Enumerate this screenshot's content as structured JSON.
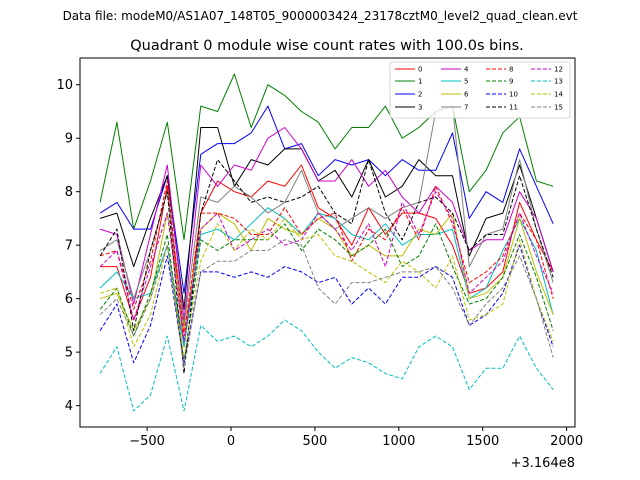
{
  "suptitle": "Data file: modeM0/AS1A07_148T05_9000003424_23178cztM0_level2_quad_clean.evt",
  "chart_data": {
    "type": "line",
    "title": "Quadrant 0 module wise count rates with 100.0s bins.",
    "xlabel": "",
    "ylabel": "",
    "x_offset_label": "+3.164e8",
    "xlim": [
      -900,
      2050
    ],
    "ylim": [
      3.6,
      10.5
    ],
    "xticks": [
      -500,
      0,
      500,
      1000,
      1500,
      2000
    ],
    "xtick_labels": [
      "−500",
      "0",
      "500",
      "1000",
      "1500",
      "2000"
    ],
    "yticks": [
      4,
      5,
      6,
      7,
      8,
      9,
      10
    ],
    "ytick_labels": [
      "4",
      "5",
      "6",
      "7",
      "8",
      "9",
      "10"
    ],
    "grid": false,
    "legend_location": "top-right",
    "x": [
      -780,
      -680,
      -580,
      -480,
      -380,
      -280,
      -180,
      -80,
      20,
      120,
      220,
      320,
      420,
      520,
      620,
      720,
      820,
      920,
      1020,
      1120,
      1220,
      1320,
      1420,
      1520,
      1620,
      1720,
      1820,
      1920
    ],
    "series": [
      {
        "name": "0",
        "color": "#ff0000",
        "dash": "solid",
        "values": [
          6.6,
          6.6,
          5.6,
          6.4,
          8.1,
          5.1,
          7.6,
          8.2,
          8.0,
          7.9,
          8.2,
          8.1,
          8.5,
          7.7,
          7.5,
          7.0,
          7.7,
          7.2,
          7.6,
          7.6,
          7.5,
          7.0,
          6.1,
          6.2,
          6.5,
          7.8,
          7.1,
          6.5
        ]
      },
      {
        "name": "1",
        "color": "#008000",
        "dash": "solid",
        "values": [
          7.8,
          9.3,
          7.3,
          8.2,
          9.3,
          7.1,
          9.6,
          9.5,
          10.2,
          9.2,
          10.0,
          9.8,
          9.5,
          9.3,
          8.8,
          9.2,
          9.2,
          9.6,
          9.0,
          9.2,
          9.5,
          9.6,
          8.0,
          8.4,
          9.1,
          9.4,
          8.2,
          8.1
        ]
      },
      {
        "name": "2",
        "color": "#0000ff",
        "dash": "solid",
        "values": [
          7.6,
          7.8,
          7.3,
          7.3,
          8.3,
          6.1,
          8.7,
          8.9,
          8.9,
          9.1,
          9.6,
          8.8,
          8.9,
          8.3,
          8.6,
          8.5,
          8.6,
          8.3,
          8.6,
          8.4,
          8.4,
          9.1,
          7.5,
          8.0,
          7.8,
          8.8,
          8.1,
          7.4
        ]
      },
      {
        "name": "3",
        "color": "#000000",
        "dash": "solid",
        "values": [
          7.5,
          7.6,
          6.6,
          7.5,
          8.3,
          5.8,
          9.2,
          9.2,
          8.1,
          8.6,
          8.5,
          8.8,
          8.8,
          8.2,
          8.4,
          7.9,
          8.6,
          7.9,
          8.1,
          8.6,
          8.3,
          8.3,
          6.8,
          7.5,
          7.6,
          8.5,
          7.5,
          6.5
        ]
      },
      {
        "name": "4",
        "color": "#cc00cc",
        "dash": "solid",
        "values": [
          7.3,
          7.2,
          5.9,
          7.2,
          8.5,
          5.6,
          8.5,
          8.1,
          8.5,
          8.4,
          9.0,
          9.2,
          8.8,
          8.2,
          8.2,
          8.6,
          8.1,
          8.4,
          7.9,
          7.6,
          8.1,
          7.8,
          6.9,
          7.1,
          7.1,
          8.0,
          7.5,
          6.5
        ]
      },
      {
        "name": "5",
        "color": "#00bfbf",
        "dash": "solid",
        "values": [
          6.2,
          6.5,
          6.0,
          6.1,
          7.0,
          5.1,
          7.2,
          7.3,
          7.1,
          7.4,
          7.7,
          7.5,
          7.2,
          7.6,
          7.5,
          7.2,
          7.1,
          7.4,
          7.0,
          7.2,
          7.2,
          7.3,
          6.0,
          6.2,
          6.9,
          7.5,
          6.9,
          5.7
        ]
      },
      {
        "name": "6",
        "color": "#bfbf00",
        "dash": "solid",
        "values": [
          6.0,
          6.1,
          5.4,
          6.0,
          7.6,
          5.4,
          7.3,
          7.6,
          7.4,
          6.9,
          7.5,
          7.3,
          7.2,
          7.5,
          7.3,
          6.8,
          7.0,
          6.8,
          6.8,
          7.3,
          7.2,
          7.6,
          6.0,
          6.1,
          6.4,
          7.5,
          6.5,
          5.7
        ]
      },
      {
        "name": "7",
        "color": "#808080",
        "dash": "solid",
        "values": [
          6.9,
          7.1,
          6.0,
          6.9,
          8.0,
          5.5,
          7.9,
          7.8,
          8.1,
          7.9,
          7.6,
          7.8,
          8.4,
          7.6,
          7.3,
          7.5,
          7.7,
          7.5,
          7.7,
          7.8,
          9.5,
          9.6,
          6.6,
          7.2,
          7.3,
          8.6,
          7.3,
          6.3
        ]
      },
      {
        "name": "8",
        "color": "#ff0000",
        "dash": "dashed",
        "values": [
          6.8,
          6.9,
          5.8,
          6.7,
          8.2,
          5.3,
          7.6,
          7.6,
          7.5,
          7.2,
          7.2,
          7.7,
          7.2,
          7.5,
          7.6,
          6.7,
          7.3,
          7.1,
          7.7,
          7.1,
          8.1,
          7.4,
          6.3,
          6.5,
          6.8,
          7.6,
          7.1,
          6.0
        ]
      },
      {
        "name": "9",
        "color": "#008000",
        "dash": "dashed",
        "values": [
          5.8,
          6.2,
          5.3,
          6.1,
          7.2,
          4.8,
          7.1,
          6.9,
          7.1,
          7.1,
          7.1,
          7.4,
          6.9,
          7.3,
          7.1,
          6.8,
          7.0,
          7.3,
          6.6,
          6.8,
          7.4,
          6.6,
          5.9,
          6.0,
          6.4,
          7.2,
          6.4,
          5.4
        ]
      },
      {
        "name": "10",
        "color": "#0000ff",
        "dash": "dashed",
        "values": [
          5.4,
          5.9,
          4.8,
          5.5,
          6.8,
          4.8,
          6.5,
          6.5,
          6.4,
          6.5,
          6.4,
          6.6,
          6.5,
          6.3,
          6.4,
          5.9,
          6.2,
          5.9,
          6.4,
          6.4,
          6.6,
          6.4,
          5.5,
          5.7,
          6.1,
          7.0,
          6.0,
          5.1
        ]
      },
      {
        "name": "11",
        "color": "#000000",
        "dash": "dashed",
        "values": [
          6.8,
          7.3,
          5.4,
          6.9,
          8.0,
          4.6,
          7.6,
          8.6,
          8.2,
          7.8,
          7.9,
          7.8,
          7.9,
          8.1,
          7.6,
          7.4,
          8.6,
          7.6,
          7.1,
          7.8,
          7.9,
          7.6,
          6.9,
          7.2,
          7.2,
          8.3,
          7.3,
          6.4
        ]
      },
      {
        "name": "12",
        "color": "#cc00cc",
        "dash": "dashed",
        "values": [
          6.6,
          6.9,
          5.6,
          6.6,
          7.6,
          5.2,
          7.3,
          7.6,
          6.9,
          7.1,
          7.3,
          7.0,
          7.1,
          7.6,
          7.3,
          6.9,
          7.4,
          6.6,
          7.8,
          7.2,
          8.0,
          7.5,
          6.1,
          6.4,
          6.7,
          7.6,
          6.8,
          6.1
        ]
      },
      {
        "name": "13",
        "color": "#00bfbf",
        "dash": "dashed",
        "values": [
          4.6,
          5.1,
          3.9,
          4.2,
          5.3,
          3.9,
          5.5,
          5.2,
          5.3,
          5.1,
          5.3,
          5.6,
          5.4,
          5.0,
          4.7,
          4.9,
          4.8,
          4.6,
          4.5,
          5.1,
          5.3,
          5.1,
          4.3,
          4.7,
          4.7,
          5.3,
          4.7,
          4.3
        ]
      },
      {
        "name": "14",
        "color": "#bfbf00",
        "dash": "dashed",
        "values": [
          6.1,
          6.2,
          5.1,
          5.7,
          7.0,
          4.9,
          6.7,
          7.4,
          6.9,
          7.3,
          7.1,
          7.5,
          7.1,
          7.2,
          6.8,
          6.7,
          6.5,
          6.3,
          6.7,
          6.5,
          6.2,
          6.8,
          5.6,
          5.7,
          5.9,
          7.1,
          6.0,
          5.2
        ]
      },
      {
        "name": "15",
        "color": "#808080",
        "dash": "dashed",
        "values": [
          5.7,
          6.0,
          5.3,
          6.0,
          7.0,
          4.7,
          6.5,
          6.7,
          6.7,
          6.9,
          6.9,
          7.1,
          7.0,
          6.2,
          5.9,
          6.3,
          6.3,
          6.4,
          6.5,
          6.5,
          6.6,
          6.2,
          5.5,
          5.9,
          6.2,
          6.8,
          6.0,
          4.9
        ]
      }
    ]
  }
}
